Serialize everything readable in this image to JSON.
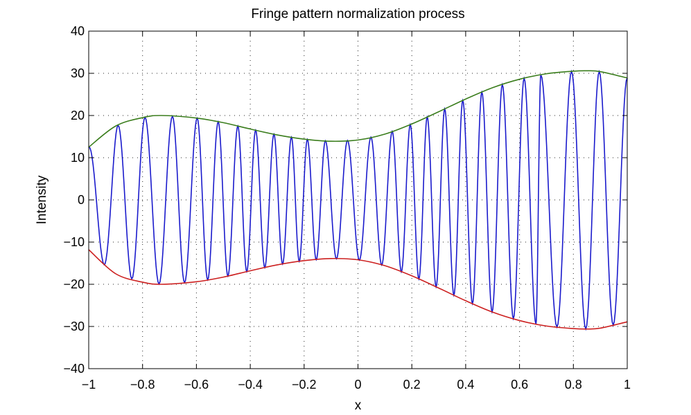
{
  "chart_data": {
    "type": "line",
    "title": "Fringe pattern normalization process",
    "xlabel": "x",
    "ylabel": "Intensity",
    "xlim": [
      -1,
      1
    ],
    "ylim": [
      -40,
      40
    ],
    "grid": true,
    "grid_style": "dotted",
    "legend": null,
    "xticks": [
      -1,
      -0.8,
      -0.6,
      -0.4,
      -0.2,
      0,
      0.2,
      0.4,
      0.6,
      0.8,
      1
    ],
    "xtick_labels": [
      "−1",
      "−0.8",
      "−0.6",
      "−0.4",
      "−0.2",
      "0",
      "0.2",
      "0.4",
      "0.6",
      "0.8",
      "1"
    ],
    "yticks": [
      -40,
      -30,
      -20,
      -10,
      0,
      10,
      20,
      30,
      40
    ],
    "ytick_labels": [
      "−40",
      "−30",
      "−20",
      "−10",
      "0",
      "10",
      "20",
      "30",
      "40"
    ],
    "series": [
      {
        "name": "upper envelope",
        "color": "#3a7d1c",
        "x": [
          -1,
          -0.9,
          -0.8,
          -0.73,
          -0.6,
          -0.5,
          -0.4,
          -0.3,
          -0.2,
          -0.1,
          0,
          0.1,
          0.2,
          0.3,
          0.4,
          0.5,
          0.6,
          0.7,
          0.8,
          0.85,
          0.9,
          1
        ],
        "values": [
          12.5,
          17.5,
          19.5,
          20.0,
          19.4,
          18.3,
          16.8,
          15.4,
          14.4,
          13.9,
          14.2,
          15.6,
          18.0,
          20.9,
          23.9,
          26.6,
          28.6,
          29.9,
          30.5,
          30.6,
          30.4,
          28.9
        ]
      },
      {
        "name": "lower envelope",
        "color": "#cc1f1f",
        "x": [
          -1,
          -0.9,
          -0.8,
          -0.73,
          -0.6,
          -0.5,
          -0.4,
          -0.3,
          -0.2,
          -0.1,
          0,
          0.1,
          0.2,
          0.3,
          0.4,
          0.5,
          0.6,
          0.7,
          0.8,
          0.85,
          0.9,
          1
        ],
        "values": [
          -11.8,
          -17.5,
          -19.5,
          -20.0,
          -19.4,
          -18.3,
          -16.8,
          -15.4,
          -14.4,
          -13.9,
          -14.2,
          -15.6,
          -18.0,
          -20.9,
          -23.9,
          -26.6,
          -28.6,
          -29.9,
          -30.5,
          -30.6,
          -30.4,
          -28.9
        ]
      },
      {
        "name": "fringe pattern",
        "color": "#1a1acc",
        "envelope": "upper envelope",
        "peaks_x": [
          -1,
          -0.891,
          -0.791,
          -0.689,
          -0.597,
          -0.519,
          -0.446,
          -0.38,
          -0.312,
          -0.247,
          -0.188,
          -0.121,
          -0.039,
          0.048,
          0.127,
          0.194,
          0.257,
          0.322,
          0.389,
          0.46,
          0.536,
          0.617,
          0.679,
          0.793,
          0.896,
          1.0
        ],
        "troughs_x": [
          -0.943,
          -0.84,
          -0.739,
          -0.644,
          -0.558,
          -0.483,
          -0.413,
          -0.346,
          -0.28,
          -0.218,
          -0.155,
          -0.08,
          0.005,
          0.088,
          0.161,
          0.226,
          0.29,
          0.356,
          0.425,
          0.498,
          0.577,
          0.661,
          0.739,
          0.846,
          0.948
        ]
      }
    ]
  }
}
